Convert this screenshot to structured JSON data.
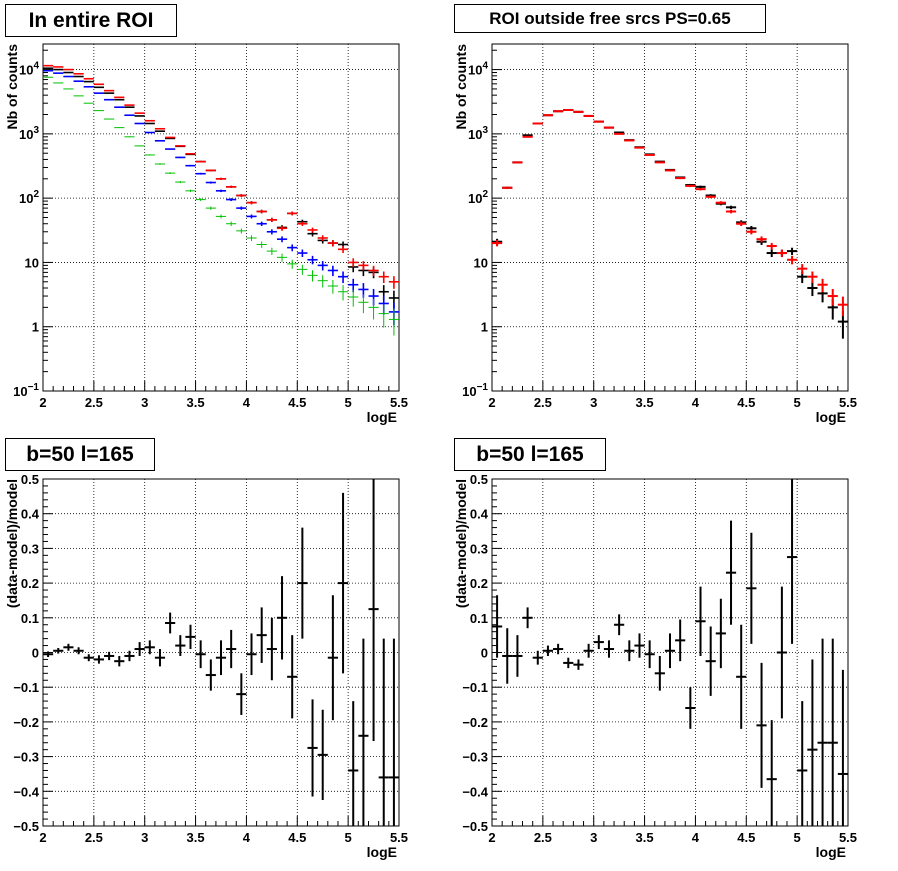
{
  "chart_data": [
    {
      "type": "scatter",
      "title": "In entire ROI",
      "xlabel": "logE",
      "ylabel": "Nb of counts",
      "xlim": [
        2,
        5.5
      ],
      "ylim": [
        0.1,
        25000
      ],
      "ylog": true,
      "grid": true,
      "xticks": [
        "2",
        "2.5",
        "3",
        "3.5",
        "4",
        "4.5",
        "5",
        "5.5"
      ],
      "yticks": [
        {
          "v": 0.1,
          "base": "10",
          "exp": "−1"
        },
        {
          "v": 1,
          "label": "1"
        },
        {
          "v": 10,
          "label": "10"
        },
        {
          "v": 100,
          "base": "10",
          "exp": "2"
        },
        {
          "v": 1000,
          "base": "10",
          "exp": "3"
        },
        {
          "v": 10000,
          "base": "10",
          "exp": "4"
        }
      ],
      "series": [
        {
          "color": "#000000",
          "x": [
            2.05,
            2.15,
            2.25,
            2.35,
            2.45,
            2.55,
            2.65,
            2.75,
            2.85,
            2.95,
            3.05,
            3.15,
            3.25,
            3.35,
            3.45,
            3.55,
            3.65,
            3.75,
            3.85,
            3.95,
            4.05,
            4.15,
            4.25,
            4.35,
            4.45,
            4.55,
            4.65,
            4.75,
            4.85,
            4.95,
            5.05,
            5.15,
            5.25,
            5.35,
            5.45
          ],
          "y": [
            10500,
            10000,
            9000,
            7800,
            6500,
            5300,
            4300,
            3400,
            2600,
            1900,
            1450,
            1100,
            850,
            640,
            480,
            370,
            270,
            200,
            150,
            110,
            85,
            62,
            46,
            35,
            58,
            43,
            28,
            22,
            20,
            19,
            8.5,
            7.5,
            7.0,
            3.5,
            2.8
          ]
        },
        {
          "color": "#ff0000",
          "x": [
            2.05,
            2.15,
            2.25,
            2.35,
            2.45,
            2.55,
            2.65,
            2.75,
            2.85,
            2.95,
            3.05,
            3.15,
            3.25,
            3.35,
            3.45,
            3.55,
            3.65,
            3.75,
            3.85,
            3.95,
            4.05,
            4.15,
            4.25,
            4.35,
            4.45,
            4.55,
            4.65,
            4.75,
            4.85,
            4.95,
            5.05,
            5.15,
            5.25,
            5.35,
            5.45
          ],
          "y": [
            11500,
            11000,
            10000,
            8600,
            7200,
            5900,
            4700,
            3700,
            2800,
            2100,
            1600,
            1200,
            880,
            650,
            490,
            370,
            270,
            200,
            150,
            110,
            85,
            62,
            46,
            34,
            58,
            40,
            32,
            24,
            20,
            16,
            10,
            9,
            7.5,
            6.0,
            5.0
          ]
        },
        {
          "color": "#0000ff",
          "x": [
            2.05,
            2.15,
            2.25,
            2.35,
            2.45,
            2.55,
            2.65,
            2.75,
            2.85,
            2.95,
            3.05,
            3.15,
            3.25,
            3.35,
            3.45,
            3.55,
            3.65,
            3.75,
            3.85,
            3.95,
            4.05,
            4.15,
            4.25,
            4.35,
            4.45,
            4.55,
            4.65,
            4.75,
            4.85,
            4.95,
            5.05,
            5.15,
            5.25,
            5.35,
            5.45
          ],
          "y": [
            9600,
            8800,
            7800,
            6600,
            5400,
            4300,
            3400,
            2600,
            1950,
            1450,
            1050,
            780,
            580,
            430,
            320,
            240,
            175,
            130,
            95,
            70,
            52,
            40,
            30,
            23,
            17,
            14,
            11,
            9,
            7.5,
            6.0,
            4.5,
            3.8,
            3.0,
            2.3,
            1.7
          ]
        },
        {
          "color": "#00c000",
          "x": [
            2.05,
            2.15,
            2.25,
            2.35,
            2.45,
            2.55,
            2.65,
            2.75,
            2.85,
            2.95,
            3.05,
            3.15,
            3.25,
            3.35,
            3.45,
            3.55,
            3.65,
            3.75,
            3.85,
            3.95,
            4.05,
            4.15,
            4.25,
            4.35,
            4.45,
            4.55,
            4.65,
            4.75,
            4.85,
            4.95,
            5.05,
            5.15,
            5.25,
            5.35,
            5.45
          ],
          "y": [
            7600,
            6200,
            5000,
            3900,
            3000,
            2300,
            1700,
            1250,
            900,
            650,
            470,
            340,
            245,
            178,
            130,
            95,
            70,
            52,
            40,
            31,
            24,
            19,
            15,
            12,
            9.5,
            7.8,
            6.3,
            5.2,
            4.3,
            3.5,
            2.9,
            2.4,
            2.0,
            1.6,
            1.3
          ]
        }
      ]
    },
    {
      "type": "scatter",
      "title": "ROI outside free srcs PS=0.65",
      "xlabel": "logE",
      "ylabel": "Nb of counts",
      "xlim": [
        2,
        5.5
      ],
      "ylim": [
        0.1,
        25000
      ],
      "ylog": true,
      "grid": true,
      "xticks": [
        "2",
        "2.5",
        "3",
        "3.5",
        "4",
        "4.5",
        "5",
        "5.5"
      ],
      "yticks": [
        {
          "v": 0.1,
          "base": "10",
          "exp": "−1"
        },
        {
          "v": 1,
          "label": "1"
        },
        {
          "v": 10,
          "label": "10"
        },
        {
          "v": 100,
          "base": "10",
          "exp": "2"
        },
        {
          "v": 1000,
          "base": "10",
          "exp": "3"
        },
        {
          "v": 10000,
          "base": "10",
          "exp": "4"
        }
      ],
      "series": [
        {
          "color": "#000000",
          "x": [
            2.05,
            2.15,
            2.25,
            2.35,
            2.45,
            2.55,
            2.65,
            2.75,
            2.85,
            2.95,
            3.05,
            3.15,
            3.25,
            3.35,
            3.45,
            3.55,
            3.65,
            3.75,
            3.85,
            3.95,
            4.05,
            4.15,
            4.25,
            4.35,
            4.45,
            4.55,
            4.65,
            4.75,
            4.85,
            4.95,
            5.05,
            5.15,
            5.25,
            5.35,
            5.45
          ],
          "y": [
            21,
            145,
            360,
            950,
            1450,
            1950,
            2250,
            2350,
            2200,
            1900,
            1550,
            1250,
            1050,
            800,
            620,
            480,
            370,
            275,
            210,
            160,
            150,
            110,
            82,
            72,
            42,
            34,
            21,
            14,
            14,
            15,
            6,
            4,
            3.3,
            2.0,
            1.2
          ]
        },
        {
          "color": "#ff0000",
          "x": [
            2.05,
            2.15,
            2.25,
            2.35,
            2.45,
            2.55,
            2.65,
            2.75,
            2.85,
            2.95,
            3.05,
            3.15,
            3.25,
            3.35,
            3.45,
            3.55,
            3.65,
            3.75,
            3.85,
            3.95,
            4.05,
            4.15,
            4.25,
            4.35,
            4.45,
            4.55,
            4.65,
            4.75,
            4.85,
            4.95,
            5.05,
            5.15,
            5.25,
            5.35,
            5.45
          ],
          "y": [
            20,
            145,
            360,
            900,
            1450,
            1950,
            2250,
            2350,
            2200,
            1900,
            1550,
            1250,
            1000,
            790,
            610,
            470,
            360,
            270,
            205,
            155,
            138,
            105,
            85,
            62,
            40,
            30,
            23,
            18,
            14,
            11,
            8,
            6,
            4.5,
            3.0,
            2.2
          ]
        }
      ]
    },
    {
      "type": "scatter",
      "title": "b=50 l=165",
      "xlabel": "logE",
      "ylabel": "(data-model)/model",
      "xlim": [
        2,
        5.5
      ],
      "ylim": [
        -0.5,
        0.5
      ],
      "ylog": false,
      "grid": true,
      "xticks": [
        "2",
        "2.5",
        "3",
        "3.5",
        "4",
        "4.5",
        "5",
        "5.5"
      ],
      "yticks": [
        {
          "v": -0.5,
          "label": "−0.5"
        },
        {
          "v": -0.4,
          "label": "−0.4"
        },
        {
          "v": -0.3,
          "label": "−0.3"
        },
        {
          "v": -0.2,
          "label": "−0.2"
        },
        {
          "v": -0.1,
          "label": "−0.1"
        },
        {
          "v": 0,
          "label": "0"
        },
        {
          "v": 0.1,
          "label": "0.1"
        },
        {
          "v": 0.2,
          "label": "0.2"
        },
        {
          "v": 0.3,
          "label": "0.3"
        },
        {
          "v": 0.4,
          "label": "0.4"
        },
        {
          "v": 0.5,
          "label": "0.5"
        }
      ],
      "series": [
        {
          "color": "#000000",
          "x": [
            2.05,
            2.15,
            2.25,
            2.35,
            2.45,
            2.55,
            2.65,
            2.75,
            2.85,
            2.95,
            3.05,
            3.15,
            3.25,
            3.35,
            3.45,
            3.55,
            3.65,
            3.75,
            3.85,
            3.95,
            4.05,
            4.15,
            4.25,
            4.35,
            4.45,
            4.55,
            4.65,
            4.75,
            4.85,
            4.95,
            5.05,
            5.15,
            5.25,
            5.35,
            5.45
          ],
          "y": [
            -0.005,
            0.005,
            0.015,
            0.005,
            -0.015,
            -0.02,
            -0.01,
            -0.025,
            -0.01,
            0.01,
            0.015,
            -0.015,
            0.085,
            0.02,
            0.045,
            -0.005,
            -0.065,
            -0.015,
            0.01,
            -0.12,
            -0.005,
            0.05,
            0.01,
            0.1,
            -0.07,
            0.2,
            -0.275,
            -0.295,
            -0.015,
            0.2,
            -0.34,
            -0.24,
            0.125,
            -0.36,
            -0.36
          ],
          "err": [
            0.008,
            0.008,
            0.01,
            0.01,
            0.01,
            0.012,
            0.012,
            0.015,
            0.015,
            0.02,
            0.02,
            0.025,
            0.03,
            0.03,
            0.035,
            0.04,
            0.045,
            0.05,
            0.055,
            0.06,
            0.06,
            0.08,
            0.09,
            0.12,
            0.12,
            0.16,
            0.14,
            0.13,
            0.18,
            0.26,
            0.2,
            0.28,
            0.38,
            0.4,
            0.4
          ]
        }
      ]
    },
    {
      "type": "scatter",
      "title": "b=50 l=165",
      "xlabel": "logE",
      "ylabel": "(data-model)/model",
      "xlim": [
        2,
        5.5
      ],
      "ylim": [
        -0.5,
        0.5
      ],
      "ylog": false,
      "grid": true,
      "xticks": [
        "2",
        "2.5",
        "3",
        "3.5",
        "4",
        "4.5",
        "5",
        "5.5"
      ],
      "yticks": [
        {
          "v": -0.5,
          "label": "−0.5"
        },
        {
          "v": -0.4,
          "label": "−0.4"
        },
        {
          "v": -0.3,
          "label": "−0.3"
        },
        {
          "v": -0.2,
          "label": "−0.2"
        },
        {
          "v": -0.1,
          "label": "−0.1"
        },
        {
          "v": 0,
          "label": "0"
        },
        {
          "v": 0.1,
          "label": "0.1"
        },
        {
          "v": 0.2,
          "label": "0.2"
        },
        {
          "v": 0.3,
          "label": "0.3"
        },
        {
          "v": 0.4,
          "label": "0.4"
        },
        {
          "v": 0.5,
          "label": "0.5"
        }
      ],
      "series": [
        {
          "color": "#000000",
          "x": [
            2.05,
            2.15,
            2.25,
            2.35,
            2.45,
            2.55,
            2.65,
            2.75,
            2.85,
            2.95,
            3.05,
            3.15,
            3.25,
            3.35,
            3.45,
            3.55,
            3.65,
            3.75,
            3.85,
            3.95,
            4.05,
            4.15,
            4.25,
            4.35,
            4.45,
            4.55,
            4.65,
            4.75,
            4.85,
            4.95,
            5.05,
            5.15,
            5.25,
            5.35,
            5.45
          ],
          "y": [
            0.075,
            -0.01,
            -0.01,
            0.1,
            -0.015,
            0.005,
            0.01,
            -0.03,
            -0.035,
            0.005,
            0.03,
            0.01,
            0.08,
            0.005,
            0.02,
            -0.005,
            -0.06,
            0.005,
            0.035,
            -0.16,
            0.09,
            -0.025,
            0.055,
            0.23,
            -0.07,
            0.185,
            -0.21,
            -0.365,
            0.0,
            0.275,
            -0.34,
            -0.28,
            -0.26,
            -0.26,
            -0.35
          ],
          "err": [
            0.09,
            0.08,
            0.06,
            0.03,
            0.02,
            0.015,
            0.015,
            0.015,
            0.015,
            0.02,
            0.02,
            0.025,
            0.03,
            0.03,
            0.035,
            0.04,
            0.05,
            0.05,
            0.06,
            0.06,
            0.1,
            0.1,
            0.1,
            0.15,
            0.15,
            0.16,
            0.18,
            0.17,
            0.19,
            0.25,
            0.2,
            0.26,
            0.3,
            0.3,
            0.3
          ]
        }
      ]
    }
  ]
}
